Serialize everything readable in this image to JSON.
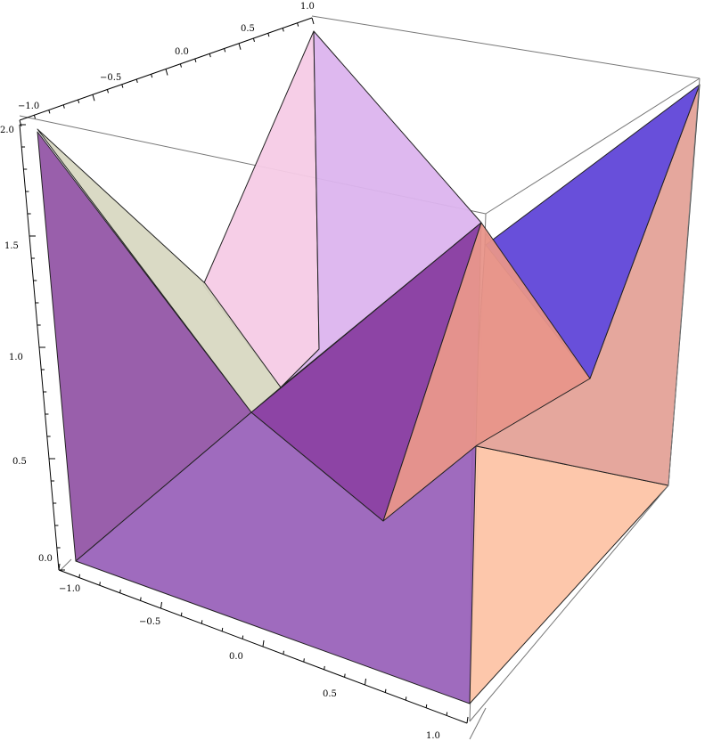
{
  "chart_data": {
    "type": "polygon3d",
    "x_axis": {
      "range": [
        -1,
        1
      ],
      "ticks": [
        "-1.0",
        "-0.5",
        "0.0",
        "0.5",
        "1.0"
      ]
    },
    "y_axis": {
      "range": [
        -1,
        1
      ],
      "ticks": [
        "-1.0",
        "-0.5",
        "0.0",
        "0.5",
        "1.0"
      ]
    },
    "z_axis": {
      "range": [
        0,
        2
      ],
      "ticks": [
        "0.0",
        "0.5",
        "1.0",
        "1.5",
        "2.0"
      ]
    },
    "boxed": true,
    "grid": false,
    "colors": {
      "left_wall": "#9a63ba",
      "left_wall_dark": "#9356a6",
      "beige": "#d8d8c2",
      "pink": "#f6cbe6",
      "lavender": "#dcb4ee",
      "front_purple": "#873aa0",
      "salmon": "#e8958a",
      "blue": "#6046d8",
      "right_wall": "#e4a298",
      "floor": "#fdc4a6"
    }
  }
}
